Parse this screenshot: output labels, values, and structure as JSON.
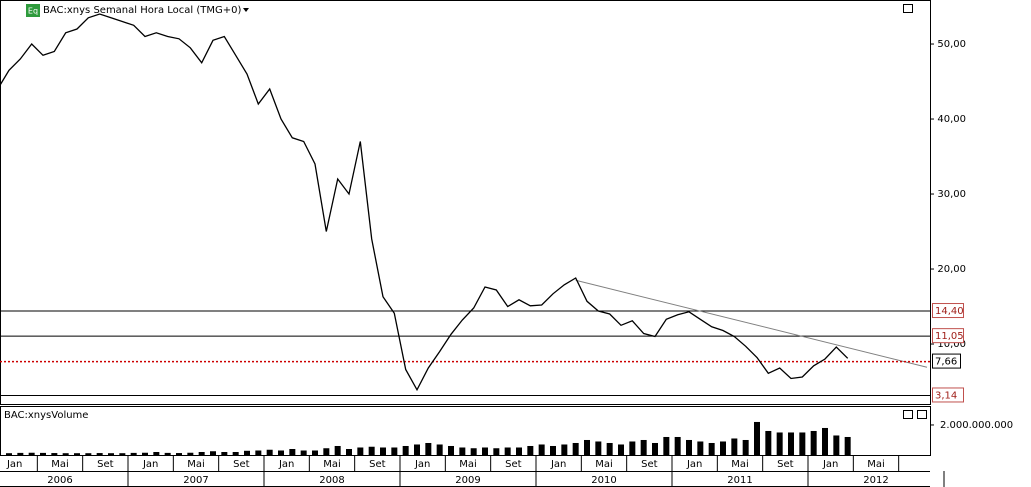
{
  "chart_data": {
    "type": "line",
    "badge": "Eq",
    "title": "BAC:xnys Semanal Hora Local (TMG+0)",
    "volume_title": "BAC:xnysVolume",
    "color": "#000000",
    "x": [
      "2006-01",
      "2006-02",
      "2006-03",
      "2006-04",
      "2006-05",
      "2006-06",
      "2006-07",
      "2006-08",
      "2006-09",
      "2006-10",
      "2006-11",
      "2006-12",
      "2007-01",
      "2007-02",
      "2007-03",
      "2007-04",
      "2007-05",
      "2007-06",
      "2007-07",
      "2007-08",
      "2007-09",
      "2007-10",
      "2007-11",
      "2007-12",
      "2008-01",
      "2008-02",
      "2008-03",
      "2008-04",
      "2008-05",
      "2008-06",
      "2008-07",
      "2008-08",
      "2008-09",
      "2008-10",
      "2008-11",
      "2008-12",
      "2009-01",
      "2009-02",
      "2009-03",
      "2009-04",
      "2009-05",
      "2009-06",
      "2009-07",
      "2009-08",
      "2009-09",
      "2009-10",
      "2009-11",
      "2009-12",
      "2010-01",
      "2010-02",
      "2010-03",
      "2010-04",
      "2010-05",
      "2010-06",
      "2010-07",
      "2010-08",
      "2010-09",
      "2010-10",
      "2010-11",
      "2010-12",
      "2011-01",
      "2011-02",
      "2011-03",
      "2011-04",
      "2011-05",
      "2011-06",
      "2011-07",
      "2011-08",
      "2011-09",
      "2011-10",
      "2011-11",
      "2011-12",
      "2012-01",
      "2012-02",
      "2012-03",
      "2012-04"
    ],
    "values": [
      44,
      46.5,
      48,
      50,
      48.5,
      49,
      51.5,
      52,
      53.5,
      54,
      53.5,
      53,
      52.5,
      51,
      51.5,
      51,
      50.7,
      49.5,
      47.5,
      50.5,
      51,
      48.5,
      46,
      42,
      44,
      40,
      37.5,
      37,
      34,
      25,
      32,
      30,
      37,
      24,
      16.3,
      14.1,
      6.6,
      3.9,
      6.8,
      9,
      11.3,
      13.2,
      14.8,
      17.6,
      17.2,
      15,
      15.9,
      15.1,
      15.2,
      16.7,
      17.9,
      18.8,
      15.7,
      14.4,
      14,
      12.5,
      13.1,
      11.4,
      11,
      13.3,
      13.9,
      14.3,
      13.3,
      12.3,
      11.8,
      11,
      9.7,
      8.2,
      6.1,
      6.8,
      5.4,
      5.6,
      7.1,
      8,
      9.6,
      8.1
    ],
    "ylim": [
      1.87,
      55.87
    ],
    "yticks": [
      {
        "value": 10,
        "label": "10,00"
      },
      {
        "value": 20,
        "label": "20,00"
      },
      {
        "value": 30,
        "label": "30,00"
      },
      {
        "value": 40,
        "label": "40,00"
      },
      {
        "value": 50,
        "label": "50,00"
      }
    ],
    "levels": [
      {
        "value": 14.4,
        "label": "14,40",
        "color": "#000000"
      },
      {
        "value": 11.05,
        "label": "11,05",
        "color": "#000000"
      },
      {
        "value": 3.14,
        "label": "3,14",
        "color": "#000000"
      }
    ],
    "current": {
      "value": 7.66,
      "label": "7,66",
      "color": "#cc0000"
    },
    "trendline": {
      "x": [
        "2010-04",
        "2012-11"
      ],
      "y": [
        18.5,
        6.9
      ],
      "color": "#808080"
    },
    "volume": {
      "color": "#000000",
      "values": [
        120000000,
        120000000,
        140000000,
        150000000,
        140000000,
        130000000,
        120000000,
        120000000,
        120000000,
        130000000,
        120000000,
        120000000,
        140000000,
        150000000,
        200000000,
        140000000,
        130000000,
        150000000,
        200000000,
        250000000,
        200000000,
        200000000,
        280000000,
        300000000,
        350000000,
        300000000,
        400000000,
        300000000,
        300000000,
        450000000,
        600000000,
        400000000,
        500000000,
        550000000,
        500000000,
        500000000,
        600000000,
        700000000,
        800000000,
        700000000,
        600000000,
        500000000,
        450000000,
        500000000,
        450000000,
        500000000,
        500000000,
        600000000,
        700000000,
        600000000,
        700000000,
        800000000,
        1000000000,
        900000000,
        800000000,
        700000000,
        900000000,
        1000000000,
        800000000,
        1200000000,
        1200000000,
        1000000000,
        900000000,
        800000000,
        900000000,
        1100000000,
        1000000000,
        2200000000,
        1600000000,
        1500000000,
        1500000000,
        1500000000,
        1600000000,
        1800000000,
        1300000000,
        1200000000
      ],
      "ylim": [
        0,
        3130000000
      ],
      "yticks": [
        {
          "value": 2000000000,
          "label": "2.000.000.000"
        }
      ]
    },
    "month_ticks": [
      "Jan",
      "Mai",
      "Set",
      "Jan",
      "Mai",
      "Set",
      "Jan",
      "Mai",
      "Set",
      "Jan",
      "Mai",
      "Set",
      "Jan",
      "Mai",
      "Set",
      "Jan",
      "Mai",
      "Set",
      "Jan",
      "Mai"
    ],
    "year_ticks": [
      "2006",
      "2007",
      "2008",
      "2009",
      "2010",
      "2011",
      "2012"
    ]
  }
}
